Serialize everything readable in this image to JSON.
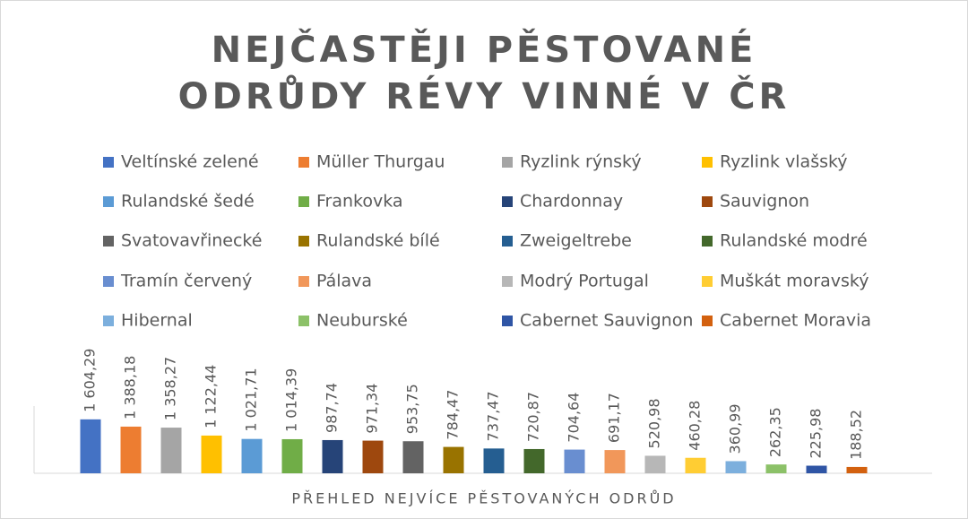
{
  "chart_data": {
    "type": "bar",
    "title": "NEJČASTĚJI PĚSTOVANÉ ODRŮDY RÉVY VINNÉ V ČR",
    "x_label": "PŘEHLED NEJVÍCE PĚSTOVANÝCH ODRŮD",
    "ylim": [
      0,
      2000
    ],
    "series": [
      {
        "name": "Veltínské zelené",
        "color": "#4472c4",
        "values": [
          1604.29
        ],
        "value_labels": [
          "1 604,29"
        ]
      },
      {
        "name": "Müller Thurgau",
        "color": "#ed7d31",
        "values": [
          1388.18
        ],
        "value_labels": [
          "1 388,18"
        ]
      },
      {
        "name": "Ryzlink rýnský",
        "color": "#a5a5a5",
        "values": [
          1358.27
        ],
        "value_labels": [
          "1 358,27"
        ]
      },
      {
        "name": "Ryzlink vlašský",
        "color": "#ffc000",
        "values": [
          1122.44
        ],
        "value_labels": [
          "1 122,44"
        ]
      },
      {
        "name": "Rulandské šedé",
        "color": "#5b9bd5",
        "values": [
          1021.71
        ],
        "value_labels": [
          "1 021,71"
        ]
      },
      {
        "name": "Frankovka",
        "color": "#70ad47",
        "values": [
          1014.39
        ],
        "value_labels": [
          "1 014,39"
        ]
      },
      {
        "name": "Chardonnay",
        "color": "#264478",
        "values": [
          987.74
        ],
        "value_labels": [
          "987,74"
        ]
      },
      {
        "name": "Sauvignon",
        "color": "#9e480e",
        "values": [
          971.34
        ],
        "value_labels": [
          "971,34"
        ]
      },
      {
        "name": "Svatovavřinecké",
        "color": "#636363",
        "values": [
          953.75
        ],
        "value_labels": [
          "953,75"
        ]
      },
      {
        "name": "Rulandské bílé",
        "color": "#997300",
        "values": [
          784.47
        ],
        "value_labels": [
          "784,47"
        ]
      },
      {
        "name": "Zweigeltrebe",
        "color": "#255e91",
        "values": [
          737.47
        ],
        "value_labels": [
          "737,47"
        ]
      },
      {
        "name": "Rulandské modré",
        "color": "#43682b",
        "values": [
          720.87
        ],
        "value_labels": [
          "720,87"
        ]
      },
      {
        "name": "Tramín červený",
        "color": "#698ed0",
        "values": [
          704.64
        ],
        "value_labels": [
          "704,64"
        ]
      },
      {
        "name": "Pálava",
        "color": "#f1975a",
        "values": [
          691.17
        ],
        "value_labels": [
          "691,17"
        ]
      },
      {
        "name": "Modrý Portugal",
        "color": "#b7b7b7",
        "values": [
          520.98
        ],
        "value_labels": [
          "520,98"
        ]
      },
      {
        "name": "Muškát moravský",
        "color": "#ffcd33",
        "values": [
          460.28
        ],
        "value_labels": [
          "460,28"
        ]
      },
      {
        "name": "Hibernal",
        "color": "#7cafdd",
        "values": [
          360.99
        ],
        "value_labels": [
          "360,99"
        ]
      },
      {
        "name": "Neuburské",
        "color": "#8cc168",
        "values": [
          262.35
        ],
        "value_labels": [
          "262,35"
        ]
      },
      {
        "name": "Cabernet Sauvignon",
        "color": "#2f55a5",
        "values": [
          225.98
        ],
        "value_labels": [
          "225,98"
        ]
      },
      {
        "name": "Cabernet Moravia",
        "color": "#d3610f",
        "values": [
          188.52
        ],
        "value_labels": [
          "188,52"
        ]
      }
    ]
  }
}
